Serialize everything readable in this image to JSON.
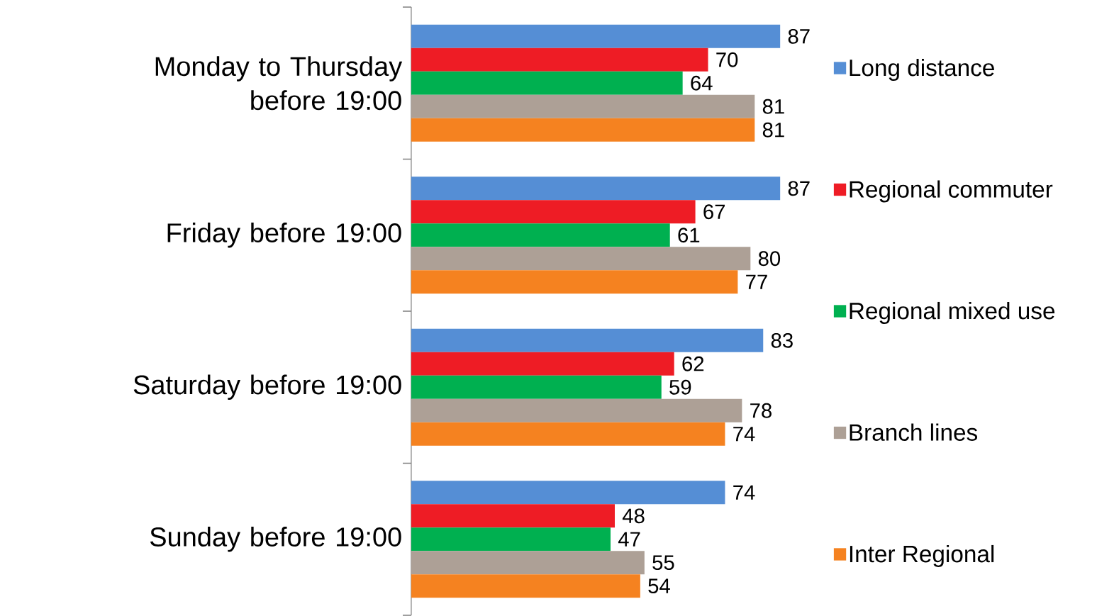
{
  "chart_data": {
    "type": "bar",
    "orientation": "horizontal",
    "categories": [
      "Monday to Thursday before 19:00",
      "Friday before 19:00",
      "Saturday before 19:00",
      "Sunday before 19:00"
    ],
    "series": [
      {
        "name": "Long distance",
        "color": "#558ed5",
        "values": [
          87,
          87,
          83,
          74
        ]
      },
      {
        "name": "Regional commuter",
        "color": "#ee1c25",
        "values": [
          70,
          67,
          62,
          48
        ]
      },
      {
        "name": "Regional mixed  use",
        "color": "#00b050",
        "values": [
          64,
          61,
          59,
          47
        ]
      },
      {
        "name": "Branch lines",
        "color": "#ada096",
        "values": [
          81,
          80,
          78,
          55
        ]
      },
      {
        "name": "Inter Regional",
        "color": "#f58220",
        "values": [
          81,
          77,
          74,
          54
        ]
      }
    ],
    "data_labels": true,
    "legend": "right"
  }
}
